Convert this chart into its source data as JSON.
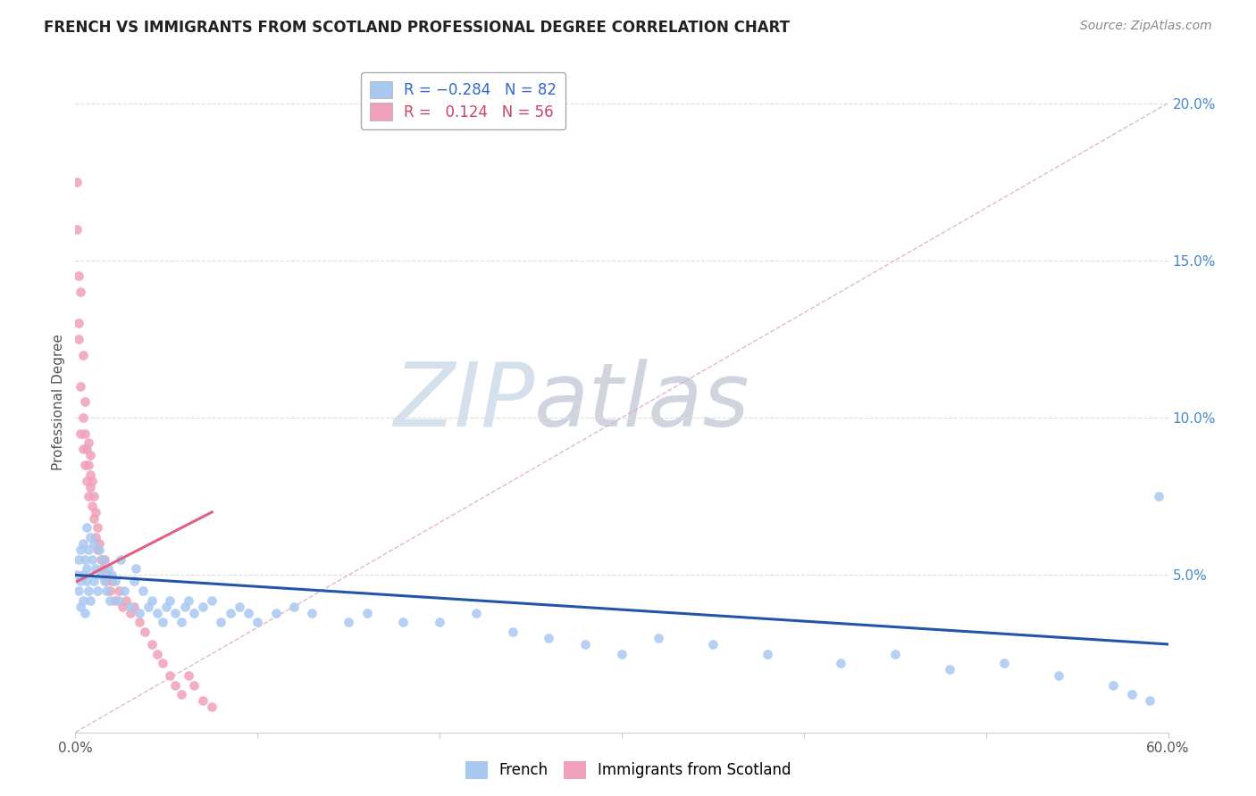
{
  "title": "FRENCH VS IMMIGRANTS FROM SCOTLAND PROFESSIONAL DEGREE CORRELATION CHART",
  "source": "Source: ZipAtlas.com",
  "ylabel": "Professional Degree",
  "xlim": [
    0.0,
    0.6
  ],
  "ylim": [
    0.0,
    0.21
  ],
  "french_R": -0.284,
  "french_N": 82,
  "scotland_R": 0.124,
  "scotland_N": 56,
  "french_color": "#a8c8f0",
  "scotland_color": "#f0a0b8",
  "french_line_color": "#2255aa",
  "scotland_line_color": "#e06080",
  "diagonal_color": "#e0b0c0",
  "watermark_zip_color": "#b8cce0",
  "watermark_atlas_color": "#b0b8c8",
  "french_x": [
    0.001,
    0.002,
    0.002,
    0.003,
    0.003,
    0.003,
    0.004,
    0.004,
    0.004,
    0.005,
    0.005,
    0.006,
    0.006,
    0.006,
    0.007,
    0.007,
    0.008,
    0.008,
    0.009,
    0.01,
    0.01,
    0.011,
    0.012,
    0.013,
    0.014,
    0.015,
    0.016,
    0.017,
    0.018,
    0.019,
    0.02,
    0.022,
    0.024,
    0.025,
    0.027,
    0.03,
    0.032,
    0.033,
    0.035,
    0.037,
    0.04,
    0.042,
    0.045,
    0.048,
    0.05,
    0.052,
    0.055,
    0.058,
    0.06,
    0.062,
    0.065,
    0.07,
    0.075,
    0.08,
    0.085,
    0.09,
    0.095,
    0.1,
    0.11,
    0.12,
    0.13,
    0.15,
    0.16,
    0.18,
    0.2,
    0.22,
    0.24,
    0.26,
    0.28,
    0.3,
    0.32,
    0.35,
    0.38,
    0.42,
    0.45,
    0.48,
    0.51,
    0.54,
    0.57,
    0.58,
    0.59,
    0.595
  ],
  "french_y": [
    0.05,
    0.045,
    0.055,
    0.04,
    0.048,
    0.058,
    0.042,
    0.05,
    0.06,
    0.038,
    0.055,
    0.048,
    0.065,
    0.052,
    0.058,
    0.045,
    0.062,
    0.042,
    0.055,
    0.048,
    0.06,
    0.052,
    0.045,
    0.058,
    0.05,
    0.055,
    0.048,
    0.045,
    0.052,
    0.042,
    0.05,
    0.048,
    0.042,
    0.055,
    0.045,
    0.04,
    0.048,
    0.052,
    0.038,
    0.045,
    0.04,
    0.042,
    0.038,
    0.035,
    0.04,
    0.042,
    0.038,
    0.035,
    0.04,
    0.042,
    0.038,
    0.04,
    0.042,
    0.035,
    0.038,
    0.04,
    0.038,
    0.035,
    0.038,
    0.04,
    0.038,
    0.035,
    0.038,
    0.035,
    0.035,
    0.038,
    0.032,
    0.03,
    0.028,
    0.025,
    0.03,
    0.028,
    0.025,
    0.022,
    0.025,
    0.02,
    0.022,
    0.018,
    0.015,
    0.012,
    0.01,
    0.075
  ],
  "scotland_x": [
    0.001,
    0.001,
    0.002,
    0.002,
    0.002,
    0.003,
    0.003,
    0.003,
    0.004,
    0.004,
    0.004,
    0.005,
    0.005,
    0.005,
    0.006,
    0.006,
    0.007,
    0.007,
    0.007,
    0.008,
    0.008,
    0.008,
    0.009,
    0.009,
    0.01,
    0.01,
    0.011,
    0.011,
    0.012,
    0.012,
    0.013,
    0.014,
    0.015,
    0.016,
    0.017,
    0.018,
    0.019,
    0.02,
    0.022,
    0.024,
    0.026,
    0.028,
    0.03,
    0.032,
    0.035,
    0.038,
    0.042,
    0.045,
    0.048,
    0.052,
    0.055,
    0.058,
    0.062,
    0.065,
    0.07,
    0.075
  ],
  "scotland_y": [
    0.175,
    0.16,
    0.13,
    0.145,
    0.125,
    0.14,
    0.11,
    0.095,
    0.12,
    0.09,
    0.1,
    0.085,
    0.095,
    0.105,
    0.08,
    0.09,
    0.085,
    0.092,
    0.075,
    0.082,
    0.078,
    0.088,
    0.072,
    0.08,
    0.068,
    0.075,
    0.062,
    0.07,
    0.058,
    0.065,
    0.06,
    0.055,
    0.052,
    0.055,
    0.048,
    0.05,
    0.045,
    0.048,
    0.042,
    0.045,
    0.04,
    0.042,
    0.038,
    0.04,
    0.035,
    0.032,
    0.028,
    0.025,
    0.022,
    0.018,
    0.015,
    0.012,
    0.018,
    0.015,
    0.01,
    0.008
  ],
  "scotland_trend_x": [
    0.001,
    0.075
  ],
  "scotland_trend_y_start": 0.048,
  "scotland_trend_y_end": 0.07,
  "french_trend_x": [
    0.0,
    0.6
  ],
  "french_trend_y_start": 0.05,
  "french_trend_y_end": 0.028
}
